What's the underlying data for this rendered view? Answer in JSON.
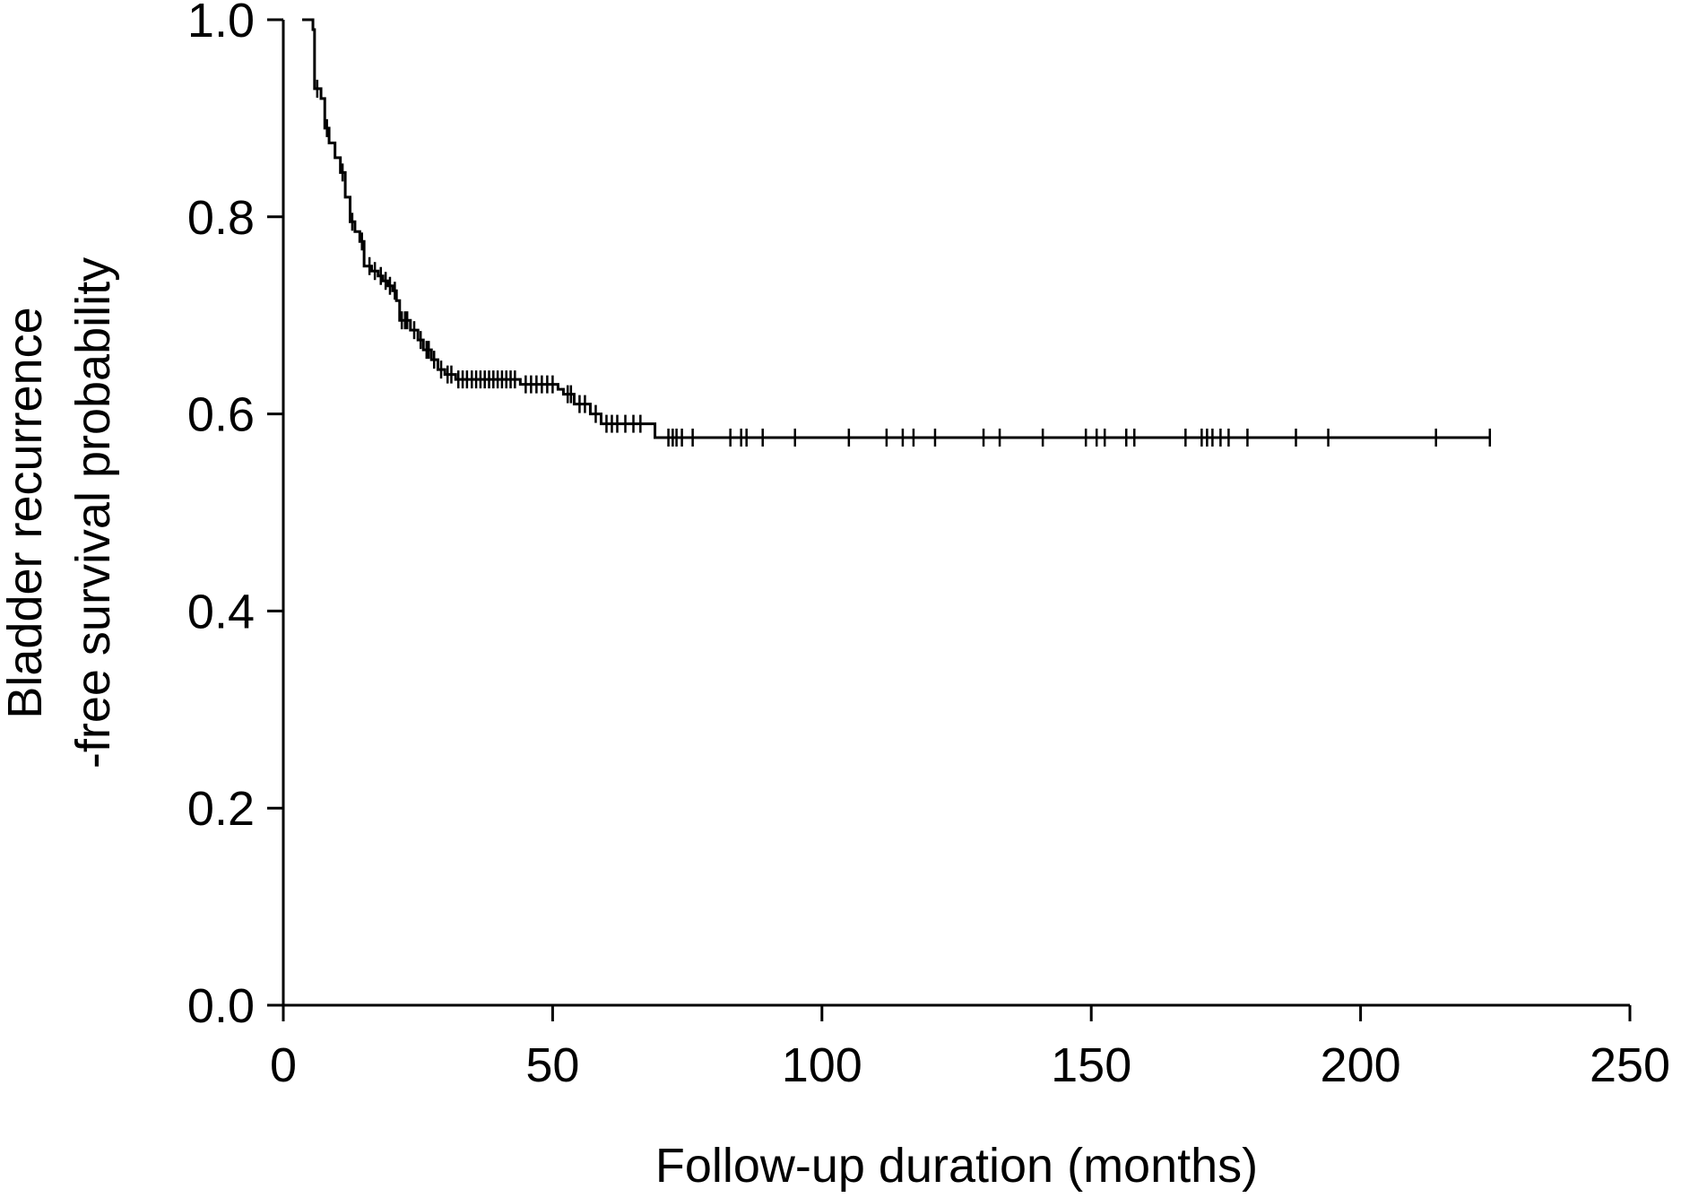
{
  "chart_data": {
    "type": "line",
    "subtype": "kaplan-meier",
    "title": "",
    "xlabel": "Follow-up duration (months)",
    "ylabel_lines": [
      "Bladder recurrence",
      "-free survival probability"
    ],
    "xlim": [
      0,
      250
    ],
    "ylim": [
      0.0,
      1.0
    ],
    "x_ticks": [
      0,
      50,
      100,
      150,
      200,
      250
    ],
    "x_tick_labels": [
      "0",
      "50",
      "100",
      "150",
      "200",
      "250"
    ],
    "y_ticks": [
      0.0,
      0.2,
      0.4,
      0.6,
      0.8,
      1.0
    ],
    "y_tick_labels": [
      "0.0",
      "0.2",
      "0.4",
      "0.6",
      "0.8",
      "1.0"
    ],
    "grid": false,
    "legend": "none",
    "color": "#000000",
    "steps": [
      [
        3.5,
        1.0
      ],
      [
        5.5,
        0.99
      ],
      [
        5.8,
        0.93
      ],
      [
        7.0,
        0.92
      ],
      [
        7.7,
        0.89
      ],
      [
        8.5,
        0.875
      ],
      [
        9.6,
        0.86
      ],
      [
        10.6,
        0.845
      ],
      [
        11.5,
        0.82
      ],
      [
        12.4,
        0.795
      ],
      [
        13.3,
        0.785
      ],
      [
        14.2,
        0.775
      ],
      [
        15.0,
        0.75
      ],
      [
        16.4,
        0.745
      ],
      [
        17.6,
        0.74
      ],
      [
        18.5,
        0.735
      ],
      [
        19.4,
        0.73
      ],
      [
        20.3,
        0.725
      ],
      [
        21.0,
        0.715
      ],
      [
        21.6,
        0.695
      ],
      [
        23.6,
        0.685
      ],
      [
        25.0,
        0.675
      ],
      [
        26.0,
        0.665
      ],
      [
        27.5,
        0.655
      ],
      [
        28.7,
        0.645
      ],
      [
        30.0,
        0.64
      ],
      [
        32.0,
        0.635
      ],
      [
        44.0,
        0.63
      ],
      [
        51.0,
        0.625
      ],
      [
        52.0,
        0.62
      ],
      [
        54.0,
        0.61
      ],
      [
        57.0,
        0.6
      ],
      [
        59.0,
        0.59
      ],
      [
        69.0,
        0.576
      ]
    ],
    "end_x": 224,
    "censored": [
      [
        6.3,
        0.93
      ],
      [
        8.1,
        0.89
      ],
      [
        11.0,
        0.845
      ],
      [
        12.8,
        0.795
      ],
      [
        14.6,
        0.775
      ],
      [
        16.0,
        0.75
      ],
      [
        17.0,
        0.745
      ],
      [
        18.1,
        0.74
      ],
      [
        19.0,
        0.735
      ],
      [
        19.8,
        0.73
      ],
      [
        20.7,
        0.725
      ],
      [
        22.0,
        0.695
      ],
      [
        22.6,
        0.695
      ],
      [
        23.0,
        0.695
      ],
      [
        24.3,
        0.685
      ],
      [
        25.5,
        0.675
      ],
      [
        26.6,
        0.665
      ],
      [
        27.0,
        0.665
      ],
      [
        28.0,
        0.655
      ],
      [
        29.3,
        0.645
      ],
      [
        30.5,
        0.64
      ],
      [
        31.2,
        0.64
      ],
      [
        32.5,
        0.635
      ],
      [
        33.3,
        0.635
      ],
      [
        34.1,
        0.635
      ],
      [
        35.0,
        0.635
      ],
      [
        35.8,
        0.635
      ],
      [
        36.6,
        0.635
      ],
      [
        37.4,
        0.635
      ],
      [
        38.2,
        0.635
      ],
      [
        39.0,
        0.635
      ],
      [
        39.8,
        0.635
      ],
      [
        40.6,
        0.635
      ],
      [
        41.4,
        0.635
      ],
      [
        42.2,
        0.635
      ],
      [
        43.0,
        0.635
      ],
      [
        45.0,
        0.63
      ],
      [
        46.0,
        0.63
      ],
      [
        47.0,
        0.63
      ],
      [
        48.0,
        0.63
      ],
      [
        49.0,
        0.63
      ],
      [
        50.0,
        0.63
      ],
      [
        52.8,
        0.62
      ],
      [
        53.4,
        0.62
      ],
      [
        55.0,
        0.61
      ],
      [
        56.0,
        0.61
      ],
      [
        58.0,
        0.6
      ],
      [
        60.0,
        0.59
      ],
      [
        61.0,
        0.59
      ],
      [
        62.0,
        0.59
      ],
      [
        63.5,
        0.59
      ],
      [
        65.0,
        0.59
      ],
      [
        66.3,
        0.59
      ],
      [
        71.5,
        0.576
      ],
      [
        72.3,
        0.576
      ],
      [
        73.0,
        0.576
      ],
      [
        74.0,
        0.576
      ],
      [
        76.0,
        0.576
      ],
      [
        83.0,
        0.576
      ],
      [
        85.0,
        0.576
      ],
      [
        86.0,
        0.576
      ],
      [
        89.0,
        0.576
      ],
      [
        95.0,
        0.576
      ],
      [
        105.0,
        0.576
      ],
      [
        112.0,
        0.576
      ],
      [
        115.0,
        0.576
      ],
      [
        117.0,
        0.576
      ],
      [
        121.0,
        0.576
      ],
      [
        130.0,
        0.576
      ],
      [
        133.0,
        0.576
      ],
      [
        141.0,
        0.576
      ],
      [
        149.0,
        0.576
      ],
      [
        151.0,
        0.576
      ],
      [
        152.5,
        0.576
      ],
      [
        156.5,
        0.576
      ],
      [
        158.0,
        0.576
      ],
      [
        167.5,
        0.576
      ],
      [
        170.5,
        0.576
      ],
      [
        171.5,
        0.576
      ],
      [
        172.5,
        0.576
      ],
      [
        174.0,
        0.576
      ],
      [
        175.5,
        0.576
      ],
      [
        179.0,
        0.576
      ],
      [
        188.0,
        0.576
      ],
      [
        194.0,
        0.576
      ],
      [
        214.0,
        0.576
      ],
      [
        224.0,
        0.576
      ]
    ]
  }
}
